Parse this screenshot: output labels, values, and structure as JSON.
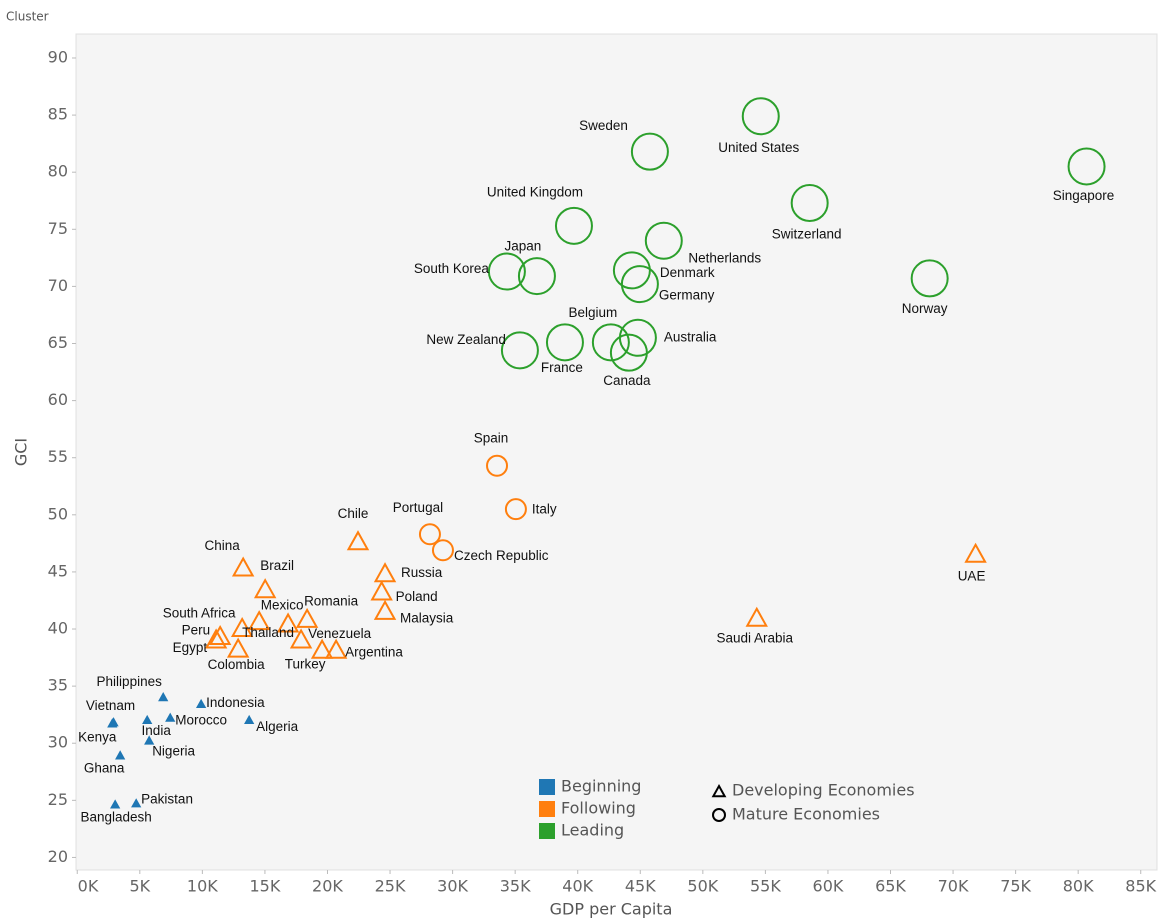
{
  "chart_data": {
    "type": "scatter",
    "title": "Cluster",
    "x_label": "GDP per Capita",
    "y_label": "GCI",
    "xlim": [
      -100,
      86300
    ],
    "ylim": [
      18.9,
      92.1
    ],
    "xticks": [
      {
        "value": 0,
        "label": "0K"
      },
      {
        "value": 5000,
        "label": "5K"
      },
      {
        "value": 10000,
        "label": "10K"
      },
      {
        "value": 15000,
        "label": "15K"
      },
      {
        "value": 20000,
        "label": "20K"
      },
      {
        "value": 25000,
        "label": "25K"
      },
      {
        "value": 30000,
        "label": "30K"
      },
      {
        "value": 35000,
        "label": "35K"
      },
      {
        "value": 40000,
        "label": "40K"
      },
      {
        "value": 45000,
        "label": "45K"
      },
      {
        "value": 50000,
        "label": "50K"
      },
      {
        "value": 55000,
        "label": "55K"
      },
      {
        "value": 60000,
        "label": "60K"
      },
      {
        "value": 65000,
        "label": "65K"
      },
      {
        "value": 70000,
        "label": "70K"
      },
      {
        "value": 75000,
        "label": "75K"
      },
      {
        "value": 80000,
        "label": "80K"
      },
      {
        "value": 85000,
        "label": "85K"
      }
    ],
    "yticks": [
      20,
      25,
      30,
      35,
      40,
      45,
      50,
      55,
      60,
      65,
      70,
      75,
      80,
      85,
      90
    ],
    "grid": false,
    "shape_legend": [
      "Developing Economies",
      "Mature Economies"
    ],
    "series": [
      {
        "name": "Beginning",
        "color": "#1f77b4",
        "labels": [
          "Philippines",
          "Indonesia",
          "Vietnam",
          "Kenya",
          "India",
          "Morocco",
          "Algeria",
          "Nigeria",
          "Ghana",
          "Pakistan",
          "Bangladesh"
        ],
        "x": [
          6870,
          9900,
          2900,
          2800,
          5590,
          7430,
          13740,
          5750,
          3430,
          4710,
          3030
        ],
        "values": [
          34.0,
          33.4,
          31.8,
          31.7,
          32.0,
          32.2,
          32.0,
          30.2,
          28.9,
          24.7,
          24.6
        ],
        "economy": [
          "Developing Economies",
          "Developing Economies",
          "Developing Economies",
          "Developing Economies",
          "Developing Economies",
          "Developing Economies",
          "Developing Economies",
          "Developing Economies",
          "Developing Economies",
          "Developing Economies",
          "Developing Economies"
        ]
      },
      {
        "name": "Following",
        "color": "#ff7f0e",
        "labels": [
          "Spain",
          "Italy",
          "Portugal",
          "Czech Republic",
          "Chile",
          "UAE",
          "Saudi Arabia",
          "China",
          "Brazil",
          "Russia",
          "Poland",
          "Malaysia",
          "Mexico",
          "Romania",
          "South Africa",
          "Thailand",
          "Peru",
          "Egypt",
          "Venezuela",
          "Colombia",
          "Turkey",
          "Argentina"
        ],
        "x": [
          33550,
          35060,
          28190,
          29230,
          22440,
          71800,
          54310,
          13260,
          15020,
          24600,
          24330,
          24600,
          14540,
          18370,
          13180,
          16850,
          11420,
          11100,
          17890,
          12860,
          19570,
          20690
        ],
        "values": [
          54.3,
          50.5,
          48.3,
          46.9,
          47.6,
          46.5,
          40.9,
          45.3,
          43.4,
          44.8,
          43.2,
          41.5,
          40.6,
          40.8,
          40.0,
          40.4,
          39.3,
          39.0,
          39.0,
          38.2,
          38.1,
          38.1
        ],
        "economy": [
          "Mature Economies",
          "Mature Economies",
          "Mature Economies",
          "Mature Economies",
          "Developing Economies",
          "Developing Economies",
          "Developing Economies",
          "Developing Economies",
          "Developing Economies",
          "Developing Economies",
          "Developing Economies",
          "Developing Economies",
          "Developing Economies",
          "Developing Economies",
          "Developing Economies",
          "Developing Economies",
          "Developing Economies",
          "Developing Economies",
          "Developing Economies",
          "Developing Economies",
          "Developing Economies",
          "Developing Economies"
        ]
      },
      {
        "name": "Leading",
        "color": "#2ca02c",
        "labels": [
          "Sweden",
          "United States",
          "Singapore",
          "United Kingdom",
          "Switzerland",
          "Netherlands",
          "South Korea",
          "Japan",
          "Denmark",
          "Germany",
          "Norway",
          "New Zealand",
          "France",
          "Belgium",
          "Australia",
          "Canada"
        ],
        "x": [
          45770,
          54630,
          80670,
          39700,
          58540,
          46880,
          34340,
          36740,
          44330,
          44970,
          68130,
          35380,
          38980,
          42650,
          44810,
          44090
        ],
        "values": [
          81.8,
          84.9,
          80.5,
          75.3,
          77.3,
          74.0,
          71.3,
          70.9,
          71.4,
          70.2,
          70.7,
          64.4,
          65.1,
          65.1,
          65.5,
          64.2
        ],
        "economy": [
          "Mature Economies",
          "Mature Economies",
          "Mature Economies",
          "Mature Economies",
          "Mature Economies",
          "Mature Economies",
          "Mature Economies",
          "Mature Economies",
          "Mature Economies",
          "Mature Economies",
          "Mature Economies",
          "Mature Economies",
          "Mature Economies",
          "Mature Economies",
          "Mature Economies",
          "Mature Economies"
        ]
      }
    ]
  }
}
